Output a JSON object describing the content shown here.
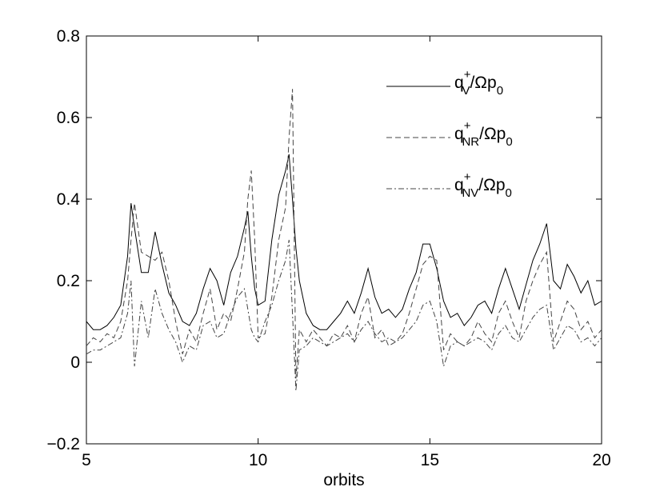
{
  "chart_data": {
    "type": "line",
    "xlabel": "orbits",
    "x": [
      5.0,
      5.2,
      5.4,
      5.6,
      5.8,
      6.0,
      6.2,
      6.3,
      6.4,
      6.6,
      6.8,
      7.0,
      7.2,
      7.4,
      7.6,
      7.8,
      8.0,
      8.2,
      8.4,
      8.6,
      8.8,
      9.0,
      9.2,
      9.4,
      9.6,
      9.7,
      9.8,
      9.9,
      10.0,
      10.2,
      10.4,
      10.6,
      10.8,
      10.9,
      11.0,
      11.1,
      11.2,
      11.4,
      11.6,
      11.8,
      12.0,
      12.2,
      12.4,
      12.6,
      12.8,
      13.0,
      13.2,
      13.4,
      13.6,
      13.8,
      14.0,
      14.2,
      14.4,
      14.6,
      14.8,
      15.0,
      15.2,
      15.4,
      15.6,
      15.8,
      16.0,
      16.2,
      16.4,
      16.6,
      16.8,
      17.0,
      17.2,
      17.4,
      17.6,
      17.8,
      18.0,
      18.2,
      18.4,
      18.6,
      18.8,
      19.0,
      19.2,
      19.4,
      19.6,
      19.8,
      20.0
    ],
    "series": [
      {
        "name": "q+V/Ωp0",
        "color": "#000000",
        "dash": "solid",
        "values": [
          0.1,
          0.08,
          0.08,
          0.09,
          0.11,
          0.14,
          0.26,
          0.39,
          0.33,
          0.22,
          0.22,
          0.32,
          0.24,
          0.17,
          0.14,
          0.1,
          0.09,
          0.12,
          0.18,
          0.23,
          0.2,
          0.14,
          0.22,
          0.26,
          0.33,
          0.37,
          0.26,
          0.18,
          0.14,
          0.15,
          0.3,
          0.41,
          0.47,
          0.51,
          0.4,
          0.28,
          0.2,
          0.12,
          0.09,
          0.08,
          0.08,
          0.1,
          0.12,
          0.15,
          0.12,
          0.17,
          0.23,
          0.16,
          0.12,
          0.13,
          0.11,
          0.13,
          0.18,
          0.22,
          0.29,
          0.29,
          0.23,
          0.15,
          0.11,
          0.12,
          0.09,
          0.11,
          0.14,
          0.15,
          0.12,
          0.18,
          0.23,
          0.18,
          0.13,
          0.19,
          0.25,
          0.29,
          0.34,
          0.2,
          0.18,
          0.24,
          0.21,
          0.17,
          0.2,
          0.14,
          0.15
        ]
      },
      {
        "name": "q+NR/Ωp0",
        "color": "#444444",
        "dash": "dashed",
        "values": [
          0.04,
          0.06,
          0.05,
          0.07,
          0.06,
          0.1,
          0.2,
          0.3,
          0.39,
          0.27,
          0.26,
          0.25,
          0.27,
          0.2,
          0.1,
          0.02,
          0.08,
          0.05,
          0.12,
          0.18,
          0.08,
          0.12,
          0.1,
          0.18,
          0.27,
          0.4,
          0.47,
          0.3,
          0.06,
          0.07,
          0.16,
          0.3,
          0.38,
          0.55,
          0.67,
          -0.04,
          0.08,
          0.05,
          0.08,
          0.06,
          0.04,
          0.07,
          0.06,
          0.09,
          0.05,
          0.12,
          0.16,
          0.06,
          0.08,
          0.04,
          0.05,
          0.07,
          0.12,
          0.18,
          0.24,
          0.26,
          0.25,
          0.03,
          0.07,
          0.05,
          0.04,
          0.06,
          0.1,
          0.07,
          0.05,
          0.12,
          0.15,
          0.1,
          0.06,
          0.15,
          0.2,
          0.24,
          0.27,
          0.05,
          0.1,
          0.15,
          0.13,
          0.08,
          0.1,
          0.06,
          0.08
        ]
      },
      {
        "name": "q+NV/Ωp0",
        "color": "#444444",
        "dash": "dashdot",
        "values": [
          0.02,
          0.03,
          0.03,
          0.04,
          0.05,
          0.06,
          0.12,
          0.2,
          -0.01,
          0.15,
          0.06,
          0.18,
          0.12,
          0.08,
          0.05,
          0.0,
          0.04,
          0.03,
          0.09,
          0.1,
          0.06,
          0.07,
          0.12,
          0.16,
          0.18,
          0.13,
          0.08,
          0.06,
          0.05,
          0.1,
          0.14,
          0.2,
          0.25,
          0.3,
          0.12,
          -0.07,
          0.03,
          0.04,
          0.06,
          0.05,
          0.04,
          0.05,
          0.06,
          0.07,
          0.05,
          0.08,
          0.1,
          0.07,
          0.05,
          0.06,
          0.05,
          0.06,
          0.08,
          0.1,
          0.14,
          0.15,
          0.1,
          -0.01,
          0.04,
          0.05,
          0.04,
          0.05,
          0.06,
          0.05,
          0.03,
          0.07,
          0.09,
          0.06,
          0.05,
          0.08,
          0.11,
          0.13,
          0.14,
          0.03,
          0.06,
          0.09,
          0.08,
          0.05,
          0.06,
          0.04,
          0.06
        ]
      }
    ],
    "xlim": [
      5,
      20
    ],
    "xticks": [
      5,
      10,
      15,
      20
    ],
    "ylim": [
      -0.2,
      0.8
    ],
    "yticks": [
      {
        "value": -0.2,
        "label": "−0.2"
      },
      0,
      0.2,
      0.4,
      0.6,
      0.8
    ],
    "legend": "upper right"
  }
}
